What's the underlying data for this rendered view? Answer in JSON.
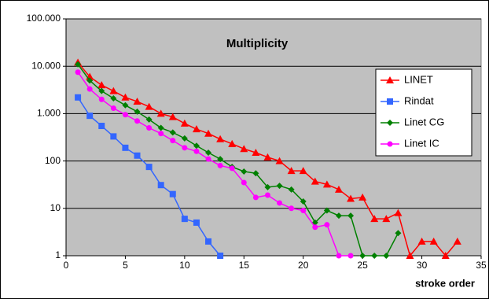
{
  "chart_data": {
    "type": "line",
    "title": "Multiplicity",
    "x_label": "stroke order",
    "x": [
      1,
      2,
      3,
      4,
      5,
      6,
      7,
      8,
      9,
      10,
      11,
      12,
      13,
      14,
      15,
      16,
      17,
      18,
      19,
      20,
      21,
      22,
      23,
      24,
      25,
      26,
      27,
      28,
      29,
      30,
      31,
      32,
      33
    ],
    "series": [
      {
        "name": "LINET",
        "color": "#ff0000",
        "marker": "triangle",
        "values": [
          12000,
          6000,
          4000,
          3000,
          2200,
          1800,
          1400,
          1000,
          850,
          620,
          470,
          380,
          290,
          230,
          180,
          150,
          120,
          100,
          62,
          62,
          37,
          32,
          25,
          16,
          17,
          6,
          6,
          8,
          1,
          2,
          2,
          1,
          2
        ]
      },
      {
        "name": "Rindat",
        "color": "#3366ff",
        "marker": "square",
        "values": [
          2200,
          900,
          550,
          330,
          190,
          130,
          75,
          31,
          20,
          6,
          5,
          2,
          1,
          null,
          null,
          null,
          null,
          null,
          null,
          null,
          null,
          null,
          null,
          null,
          null,
          null,
          null,
          null,
          null,
          null,
          null,
          null,
          null
        ]
      },
      {
        "name": "Linet CG",
        "color": "#008000",
        "marker": "diamond",
        "values": [
          11000,
          5000,
          3000,
          2100,
          1500,
          1100,
          750,
          500,
          400,
          300,
          210,
          150,
          110,
          75,
          60,
          55,
          28,
          30,
          25,
          14,
          5,
          9,
          7,
          7,
          1,
          1,
          1,
          3,
          null,
          null,
          null,
          null,
          null
        ]
      },
      {
        "name": "Linet IC",
        "color": "#ff00ff",
        "marker": "circle",
        "values": [
          7500,
          3300,
          2000,
          1300,
          950,
          700,
          500,
          380,
          270,
          190,
          160,
          110,
          80,
          70,
          35,
          17,
          19,
          13,
          10,
          9,
          4,
          4.5,
          1,
          1,
          null,
          null,
          null,
          null,
          null,
          null,
          null,
          null,
          null
        ]
      }
    ],
    "xlim": [
      0,
      35
    ],
    "xticks": [
      0,
      5,
      10,
      15,
      20,
      25,
      30,
      35
    ],
    "ylim": [
      1,
      100000
    ],
    "yscale": "log",
    "yticks": [
      1,
      10,
      100,
      {
        "value": 1000,
        "label": "1.000"
      },
      {
        "value": 10000,
        "label": "10.000"
      },
      {
        "value": 100000,
        "label": "100.000"
      }
    ],
    "grid": true,
    "legend": "right",
    "plot_background": "#c0c0c0"
  }
}
